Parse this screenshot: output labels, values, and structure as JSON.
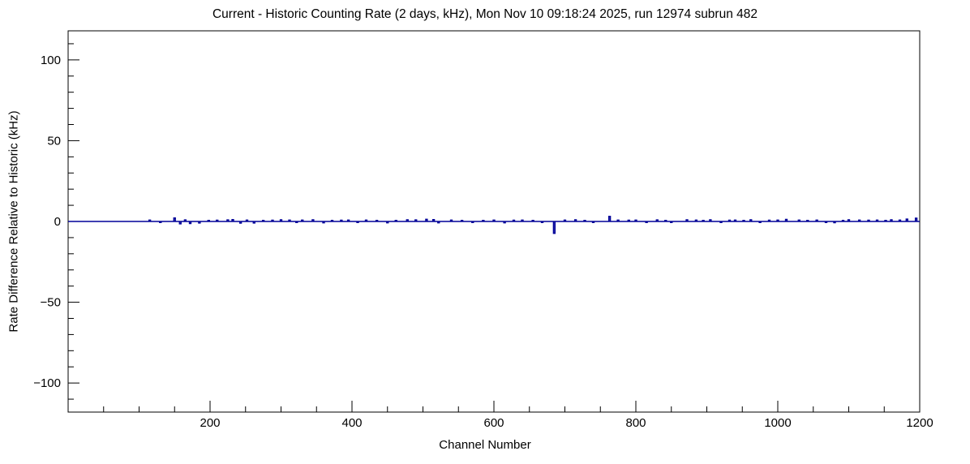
{
  "title": "Current - Historic Counting Rate (2 days, kHz), Mon Nov 10 09:18:24 2025, run 12974 subrun 482",
  "chart_data": {
    "type": "line",
    "title": "Current - Historic Counting Rate (2 days, kHz), Mon Nov 10 09:18:24 2025, run 12974 subrun 482",
    "xlabel": "Channel Number",
    "ylabel": "Rate Difference Relative to Historic (kHz)",
    "xlim": [
      0,
      1200
    ],
    "ylim": [
      -118,
      118
    ],
    "grid": false,
    "legend": "none",
    "baseline_value": 0,
    "line_color": "#000099",
    "zero_line_color": "#000000",
    "frame_color": "#000000",
    "x_ticks_major": [
      200,
      400,
      600,
      800,
      1000,
      1200
    ],
    "x_tick_labels": [
      "200",
      "400",
      "600",
      "800",
      "1000",
      "1200"
    ],
    "x_minor_step": 50,
    "y_ticks_major": [
      -100,
      -50,
      0,
      50,
      100
    ],
    "y_tick_labels": [
      "−100",
      "−50",
      "0",
      "50",
      "100"
    ],
    "y_minor_step": 10,
    "spikes": [
      [
        115,
        0.8
      ],
      [
        130,
        -0.6
      ],
      [
        150,
        2.1
      ],
      [
        158,
        -1.4
      ],
      [
        165,
        0.9
      ],
      [
        172,
        -1.2
      ],
      [
        185,
        -0.9
      ],
      [
        198,
        0.6
      ],
      [
        210,
        0.7
      ],
      [
        225,
        0.9
      ],
      [
        232,
        1.1
      ],
      [
        243,
        -1.0
      ],
      [
        252,
        0.8
      ],
      [
        262,
        -0.9
      ],
      [
        275,
        0.6
      ],
      [
        288,
        0.7
      ],
      [
        300,
        1.0
      ],
      [
        312,
        0.8
      ],
      [
        322,
        -0.6
      ],
      [
        330,
        0.8
      ],
      [
        345,
        1.0
      ],
      [
        360,
        -0.8
      ],
      [
        372,
        0.6
      ],
      [
        385,
        0.7
      ],
      [
        395,
        0.8
      ],
      [
        408,
        -0.6
      ],
      [
        420,
        0.8
      ],
      [
        435,
        0.6
      ],
      [
        450,
        -0.8
      ],
      [
        462,
        0.6
      ],
      [
        478,
        1.0
      ],
      [
        490,
        0.9
      ],
      [
        505,
        1.3
      ],
      [
        515,
        1.1
      ],
      [
        522,
        -0.8
      ],
      [
        540,
        0.8
      ],
      [
        555,
        0.6
      ],
      [
        570,
        -0.6
      ],
      [
        585,
        0.6
      ],
      [
        600,
        0.8
      ],
      [
        615,
        -0.8
      ],
      [
        628,
        0.7
      ],
      [
        640,
        0.8
      ],
      [
        655,
        0.6
      ],
      [
        668,
        -0.6
      ],
      [
        685,
        -7.3
      ],
      [
        700,
        0.8
      ],
      [
        715,
        1.0
      ],
      [
        728,
        0.6
      ],
      [
        740,
        -0.6
      ],
      [
        763,
        3.1
      ],
      [
        775,
        0.8
      ],
      [
        790,
        0.7
      ],
      [
        800,
        0.8
      ],
      [
        815,
        -0.6
      ],
      [
        830,
        0.9
      ],
      [
        842,
        0.6
      ],
      [
        850,
        -0.6
      ],
      [
        872,
        1.0
      ],
      [
        885,
        0.8
      ],
      [
        895,
        0.6
      ],
      [
        905,
        1.0
      ],
      [
        920,
        -0.6
      ],
      [
        932,
        0.7
      ],
      [
        940,
        0.8
      ],
      [
        952,
        0.6
      ],
      [
        962,
        1.0
      ],
      [
        975,
        -0.6
      ],
      [
        988,
        0.7
      ],
      [
        1000,
        0.8
      ],
      [
        1012,
        1.2
      ],
      [
        1030,
        0.8
      ],
      [
        1042,
        0.6
      ],
      [
        1055,
        0.8
      ],
      [
        1068,
        -0.6
      ],
      [
        1080,
        -0.7
      ],
      [
        1092,
        0.6
      ],
      [
        1100,
        1.0
      ],
      [
        1115,
        0.8
      ],
      [
        1128,
        0.7
      ],
      [
        1140,
        0.8
      ],
      [
        1152,
        0.6
      ],
      [
        1160,
        1.0
      ],
      [
        1172,
        0.8
      ],
      [
        1182,
        1.4
      ],
      [
        1195,
        2.0
      ]
    ]
  }
}
